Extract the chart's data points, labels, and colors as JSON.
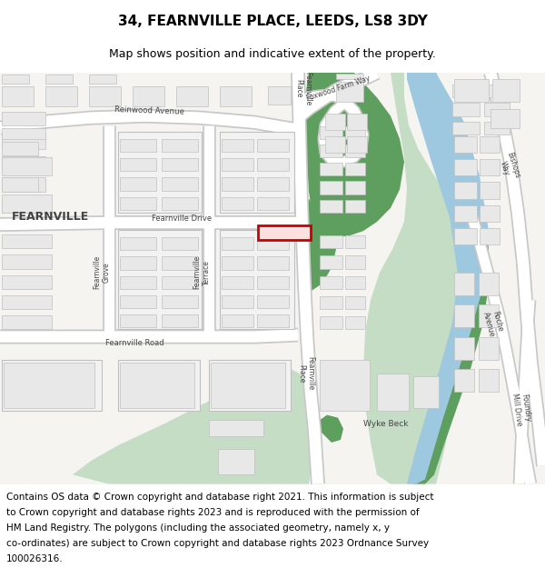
{
  "title": "34, FEARNVILLE PLACE, LEEDS, LS8 3DY",
  "subtitle": "Map shows position and indicative extent of the property.",
  "footer_lines": [
    "Contains OS data © Crown copyright and database right 2021. This information is subject",
    "to Crown copyright and database rights 2023 and is reproduced with the permission of",
    "HM Land Registry. The polygons (including the associated geometry, namely x, y",
    "co-ordinates) are subject to Crown copyright and database rights 2023 Ordnance Survey",
    "100026316."
  ],
  "map_bg": "#f5f4f0",
  "road_color": "#ffffff",
  "road_outline": "#cccccc",
  "building_fill": "#e8e8e8",
  "building_outline": "#c0c0c0",
  "green_dark": "#5e9e5e",
  "green_light": "#c5ddc5",
  "water_color": "#9ec8e0",
  "highlight_color": "#cc0000",
  "text_color": "#444444",
  "title_fontsize": 11,
  "subtitle_fontsize": 9,
  "footer_fontsize": 7.5
}
